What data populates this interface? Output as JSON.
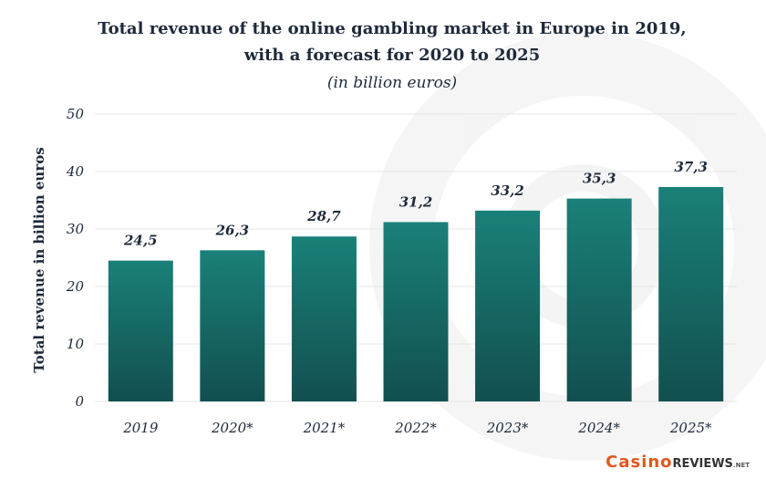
{
  "colors": {
    "bar_top": "#1a8079",
    "bar_bottom": "#124f4f",
    "text": "#1e2a3a",
    "logo_accent": "#e2571e"
  },
  "logo": {
    "casino": "Casino",
    "reviews": "REVIEWS",
    "net": ".NET"
  },
  "chart_data": {
    "type": "bar",
    "title_line1": "Total revenue of the online gambling market in Europe in 2019,",
    "title_line2": "with a forecast for 2020 to 2025",
    "subtitle": "(in billion euros)",
    "ylabel": "Total revenue in billion euros",
    "xlabel": "",
    "categories": [
      "2019",
      "2020*",
      "2021*",
      "2022*",
      "2023*",
      "2024*",
      "2025*"
    ],
    "values": [
      24.5,
      26.3,
      28.7,
      31.2,
      33.2,
      35.3,
      37.3
    ],
    "value_labels": [
      "24,5",
      "26,3",
      "28,7",
      "31,2",
      "33,2",
      "35,3",
      "37,3"
    ],
    "yticks": [
      "0",
      "10",
      "20",
      "30",
      "40",
      "50"
    ],
    "ylim": [
      0,
      50
    ],
    "grid": true,
    "legend": "none"
  }
}
